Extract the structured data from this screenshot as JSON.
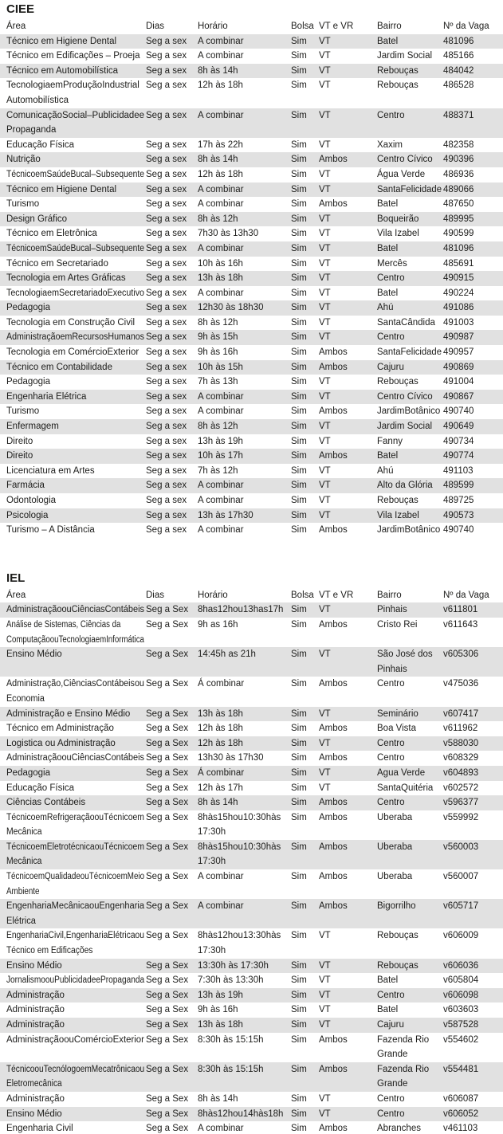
{
  "page": {
    "background": "#ffffff",
    "text_color": "#1d1d1b",
    "row_shade_color": "#e1e1e1"
  },
  "columns": [
    "Área",
    "Dias",
    "Horário",
    "Bolsa",
    "VT e VR",
    "Bairro",
    "Nº da Vaga"
  ],
  "sections": [
    {
      "title": "CIEE",
      "rows": [
        {
          "area": "Técnico em Higiene Dental",
          "dias": "Seg a sex",
          "horario": "A combinar",
          "bolsa": "Sim",
          "vt_vr": "VT",
          "bairro": "Batel",
          "vaga": "481096"
        },
        {
          "area": "Técnico em Edificações – Proeja",
          "dias": "Seg a sex",
          "horario": "A combinar",
          "bolsa": "Sim",
          "vt_vr": "VT",
          "bairro": "Jardim Social",
          "vaga": "485166"
        },
        {
          "area": "Técnico em Automobilística",
          "dias": "Seg a sex",
          "horario": "8h às 14h",
          "bolsa": "Sim",
          "vt_vr": "VT",
          "bairro": "Rebouças",
          "vaga": "484042"
        },
        {
          "area": "TecnologiaemProduçãoIndustrial\nAutomobilística",
          "dias": "Seg a sex",
          "horario": "12h às 18h",
          "bolsa": "Sim",
          "vt_vr": "VT",
          "bairro": "Rebouças",
          "vaga": "486528"
        },
        {
          "area": "ComunicaçãoSocial–Publicidadee\nPropaganda",
          "dias": "Seg a sex",
          "horario": "A combinar",
          "bolsa": "Sim",
          "vt_vr": "VT",
          "bairro": "Centro",
          "vaga": "488371"
        },
        {
          "area": "Educação Física",
          "dias": "Seg a sex",
          "horario": "17h às 22h",
          "bolsa": "Sim",
          "vt_vr": "VT",
          "bairro": "Xaxim",
          "vaga": "482358"
        },
        {
          "area": "Nutrição",
          "dias": "Seg a sex",
          "horario": "8h às 14h",
          "bolsa": "Sim",
          "vt_vr": "Ambos",
          "bairro": "Centro Cívico",
          "vaga": "490396"
        },
        {
          "area": "TécnicoemSaúdeBucal–Subsequente",
          "dias": "Seg a sex",
          "horario": "12h às 18h",
          "bolsa": "Sim",
          "vt_vr": "VT",
          "bairro": "Água Verde",
          "vaga": "486936"
        },
        {
          "area": "Técnico em Higiene Dental",
          "dias": "Seg a sex",
          "horario": "A combinar",
          "bolsa": "Sim",
          "vt_vr": "VT",
          "bairro": "SantaFelicidade",
          "vaga": "489066"
        },
        {
          "area": "Turismo",
          "dias": "Seg a sex",
          "horario": "A combinar",
          "bolsa": "Sim",
          "vt_vr": "Ambos",
          "bairro": "Batel",
          "vaga": "487650"
        },
        {
          "area": "Design Gráfico",
          "dias": "Seg a sex",
          "horario": "8h às 12h",
          "bolsa": "Sim",
          "vt_vr": "VT",
          "bairro": "Boqueirão",
          "vaga": "489995"
        },
        {
          "area": "Técnico em Eletrônica",
          "dias": "Seg a sex",
          "horario": "7h30 às 13h30",
          "bolsa": "Sim",
          "vt_vr": "VT",
          "bairro": "Vila Izabel",
          "vaga": "490599"
        },
        {
          "area": "TécnicoemSaúdeBucal–Subsequente",
          "dias": "Seg a sex",
          "horario": "A combinar",
          "bolsa": "Sim",
          "vt_vr": "VT",
          "bairro": "Batel",
          "vaga": "481096"
        },
        {
          "area": "Técnico em Secretariado",
          "dias": "Seg a sex",
          "horario": "10h às 16h",
          "bolsa": "Sim",
          "vt_vr": "VT",
          "bairro": "Mercês",
          "vaga": "485691"
        },
        {
          "area": "Tecnologia em Artes Gráficas",
          "dias": "Seg a sex",
          "horario": "13h às 18h",
          "bolsa": "Sim",
          "vt_vr": "VT",
          "bairro": "Centro",
          "vaga": "490915"
        },
        {
          "area": "TecnologiaemSecretariadoExecutivo",
          "dias": "Seg a sex",
          "horario": "A combinar",
          "bolsa": "Sim",
          "vt_vr": "VT",
          "bairro": "Batel",
          "vaga": "490224"
        },
        {
          "area": "Pedagogia",
          "dias": "Seg a sex",
          "horario": "12h30 às 18h30",
          "bolsa": "Sim",
          "vt_vr": "VT",
          "bairro": "Ahú",
          "vaga": "491086"
        },
        {
          "area": "Tecnologia em Construção Civil",
          "dias": "Seg a sex",
          "horario": "8h às 12h",
          "bolsa": "Sim",
          "vt_vr": "VT",
          "bairro": "SantaCândida",
          "vaga": "491003"
        },
        {
          "area": "AdministraçãoemRecursosHumanos",
          "dias": "Seg a sex",
          "horario": "9h às 15h",
          "bolsa": "Sim",
          "vt_vr": "VT",
          "bairro": "Centro",
          "vaga": "490987"
        },
        {
          "area": "Tecnologia em ComércioExterior",
          "dias": "Seg a sex",
          "horario": "9h às 16h",
          "bolsa": "Sim",
          "vt_vr": "Ambos",
          "bairro": "SantaFelicidade",
          "vaga": "490957"
        },
        {
          "area": "Técnico em Contabilidade",
          "dias": "Seg a sex",
          "horario": "10h às 15h",
          "bolsa": "Sim",
          "vt_vr": "Ambos",
          "bairro": "Cajuru",
          "vaga": "490869"
        },
        {
          "area": "Pedagogia",
          "dias": "Seg a sex",
          "horario": "7h às 13h",
          "bolsa": "Sim",
          "vt_vr": "VT",
          "bairro": "Rebouças",
          "vaga": "491004"
        },
        {
          "area": "Engenharia Elétrica",
          "dias": "Seg a sex",
          "horario": "A combinar",
          "bolsa": "Sim",
          "vt_vr": "VT",
          "bairro": "Centro Cívico",
          "vaga": "490867"
        },
        {
          "area": "Turismo",
          "dias": "Seg a sex",
          "horario": "A combinar",
          "bolsa": "Sim",
          "vt_vr": "Ambos",
          "bairro": "JardimBotânico",
          "vaga": "490740"
        },
        {
          "area": "Enfermagem",
          "dias": "Seg a sex",
          "horario": "8h às 12h",
          "bolsa": "Sim",
          "vt_vr": "VT",
          "bairro": "Jardim Social",
          "vaga": "490649"
        },
        {
          "area": "Direito",
          "dias": "Seg a sex",
          "horario": "13h às 19h",
          "bolsa": "Sim",
          "vt_vr": "VT",
          "bairro": "Fanny",
          "vaga": "490734"
        },
        {
          "area": "Direito",
          "dias": "Seg a sex",
          "horario": "10h às 17h",
          "bolsa": "Sim",
          "vt_vr": "Ambos",
          "bairro": "Batel",
          "vaga": "490774"
        },
        {
          "area": "Licenciatura em Artes",
          "dias": "Seg a sex",
          "horario": "7h às 12h",
          "bolsa": "Sim",
          "vt_vr": "VT",
          "bairro": "Ahú",
          "vaga": "491103"
        },
        {
          "area": "Farmácia",
          "dias": "Seg a sex",
          "horario": "A combinar",
          "bolsa": "Sim",
          "vt_vr": "VT",
          "bairro": "Alto da Glória",
          "vaga": "489599"
        },
        {
          "area": "Odontologia",
          "dias": "Seg a sex",
          "horario": "A combinar",
          "bolsa": "Sim",
          "vt_vr": "VT",
          "bairro": "Rebouças",
          "vaga": "489725"
        },
        {
          "area": "Psicologia",
          "dias": "Seg a sex",
          "horario": "13h às 17h30",
          "bolsa": "Sim",
          "vt_vr": "VT",
          "bairro": "Vila Izabel",
          "vaga": "490573"
        },
        {
          "area": "Turismo – A Distância",
          "dias": "Seg a sex",
          "horario": "A combinar",
          "bolsa": "Sim",
          "vt_vr": "Ambos",
          "bairro": "JardimBotânico",
          "vaga": "490740"
        }
      ]
    },
    {
      "title": "IEL",
      "rows": [
        {
          "area": "AdministraçãoouCiênciasContábeis",
          "dias": "Seg a Sex",
          "horario": "8has12hou13has17h",
          "bolsa": "Sim",
          "vt_vr": "VT",
          "bairro": "Pinhais",
          "vaga": "v611801"
        },
        {
          "area": "Análise de Sistemas, Ciências da\nComputaçãoouTecnologiaemInformática",
          "dias": "Seg a Sex",
          "horario": "9h as 16h",
          "bolsa": "Sim",
          "vt_vr": "Ambos",
          "bairro": "Cristo Rei",
          "vaga": "v611643"
        },
        {
          "area": "Ensino Médio",
          "dias": "Seg a Sex",
          "horario": "14:45h as 21h",
          "bolsa": "Sim",
          "vt_vr": "VT",
          "bairro": "São José dos\nPinhais",
          "vaga": "v605306"
        },
        {
          "area": "Administração,CiênciasContábeisou\nEconomia",
          "dias": "Seg a Sex",
          "horario": "Á combinar",
          "bolsa": "Sim",
          "vt_vr": "Ambos",
          "bairro": "Centro",
          "vaga": "v475036"
        },
        {
          "area": "Administração e Ensino Médio",
          "dias": "Seg a Sex",
          "horario": "13h às 18h",
          "bolsa": "Sim",
          "vt_vr": "VT",
          "bairro": "Seminário",
          "vaga": "v607417"
        },
        {
          "area": "Técnico em Administração",
          "dias": "Seg a Sex",
          "horario": "12h às 18h",
          "bolsa": "Sim",
          "vt_vr": "Ambos",
          "bairro": "Boa Vista",
          "vaga": "v611962"
        },
        {
          "area": "Logistica ou Administração",
          "dias": "Seg a Sex",
          "horario": "12h às 18h",
          "bolsa": "Sim",
          "vt_vr": "VT",
          "bairro": "Centro",
          "vaga": "v588030"
        },
        {
          "area": "AdministraçãoouCiênciasContábeis",
          "dias": "Seg a Sex",
          "horario": "13h30 às 17h30",
          "bolsa": "Sim",
          "vt_vr": "Ambos",
          "bairro": "Centro",
          "vaga": "v608329"
        },
        {
          "area": "Pedagogia",
          "dias": "Seg a Sex",
          "horario": "Á combinar",
          "bolsa": "Sim",
          "vt_vr": "VT",
          "bairro": "Agua Verde",
          "vaga": "v604893"
        },
        {
          "area": "Educação Física",
          "dias": "Seg a Sex",
          "horario": "12h às 17h",
          "bolsa": "Sim",
          "vt_vr": "VT",
          "bairro": "SantaQuitéria",
          "vaga": "v602572"
        },
        {
          "area": "Ciências Contábeis",
          "dias": "Seg a Sex",
          "horario": "8h às 14h",
          "bolsa": "Sim",
          "vt_vr": "Ambos",
          "bairro": "Centro",
          "vaga": "v596377"
        },
        {
          "area": "TécnicoemRefrigeraçãoouTécnicoem\nMecânica",
          "dias": "Seg a Sex",
          "horario": "8hàs15hou10:30hàs\n17:30h",
          "bolsa": "Sim",
          "vt_vr": "Ambos",
          "bairro": "Uberaba",
          "vaga": "v559992"
        },
        {
          "area": "TécnicoemEletrotécnicaouTécnicoem\nMecânica",
          "dias": "Seg a Sex",
          "horario": "8hàs15hou10:30hàs\n17:30h",
          "bolsa": "Sim",
          "vt_vr": "Ambos",
          "bairro": "Uberaba",
          "vaga": "v560003"
        },
        {
          "area": "TécnicoemQualidadeouTécnicoemMeio\nAmbiente",
          "dias": "Seg a Sex",
          "horario": "A combinar",
          "bolsa": "Sim",
          "vt_vr": "Ambos",
          "bairro": "Uberaba",
          "vaga": "v560007"
        },
        {
          "area": "EngenhariaMecânicaouEngenharia\nElétrica",
          "dias": "Seg a Sex",
          "horario": "A combinar",
          "bolsa": "Sim",
          "vt_vr": "Ambos",
          "bairro": "Bigorrilho",
          "vaga": "v605717"
        },
        {
          "area": "EngenhariaCivil,EngenhariaElétricaou\nTécnico em Edificações",
          "dias": "Seg a Sex",
          "horario": "8hàs12hou13:30hàs\n17:30h",
          "bolsa": "Sim",
          "vt_vr": "VT",
          "bairro": "Rebouças",
          "vaga": "v606009"
        },
        {
          "area": "Ensino Médio",
          "dias": "Seg a Sex",
          "horario": "13:30h às 17:30h",
          "bolsa": "Sim",
          "vt_vr": "VT",
          "bairro": "Rebouças",
          "vaga": "v606036"
        },
        {
          "area": "JornalismoouPublicidadeePropaganda",
          "dias": "Seg a Sex",
          "horario": "7:30h às 13:30h",
          "bolsa": "Sim",
          "vt_vr": "VT",
          "bairro": "Batel",
          "vaga": "v605804"
        },
        {
          "area": "Administração",
          "dias": "Seg a Sex",
          "horario": "13h às 19h",
          "bolsa": "Sim",
          "vt_vr": "VT",
          "bairro": "Centro",
          "vaga": "v606098"
        },
        {
          "area": "Administração",
          "dias": "Seg a Sex",
          "horario": "9h às 16h",
          "bolsa": "Sim",
          "vt_vr": "VT",
          "bairro": "Batel",
          "vaga": "v603603"
        },
        {
          "area": "Administração",
          "dias": "Seg a Sex",
          "horario": "13h às 18h",
          "bolsa": "Sim",
          "vt_vr": "VT",
          "bairro": "Cajuru",
          "vaga": "v587528"
        },
        {
          "area": "AdministraçãoouComércioExterior",
          "dias": "Seg a Sex",
          "horario": "8:30h às 15:15h",
          "bolsa": "Sim",
          "vt_vr": "Ambos",
          "bairro": "Fazenda Rio\nGrande",
          "vaga": "v554602"
        },
        {
          "area": "TécnicoouTecnólogoemMecatrônicaou\nEletromecânica",
          "dias": "Seg a Sex",
          "horario": "8:30h às 15:15h",
          "bolsa": "Sim",
          "vt_vr": "Ambos",
          "bairro": "Fazenda Rio\nGrande",
          "vaga": "v554481"
        },
        {
          "area": "Administração",
          "dias": "Seg a Sex",
          "horario": "8h às 14h",
          "bolsa": "Sim",
          "vt_vr": "VT",
          "bairro": "Centro",
          "vaga": "v606087"
        },
        {
          "area": "Ensino Médio",
          "dias": "Seg a Sex",
          "horario": "8hàs12hou14hàs18h",
          "bolsa": "Sim",
          "vt_vr": "VT",
          "bairro": "Centro",
          "vaga": "v606052"
        },
        {
          "area": "Engenharia Civil",
          "dias": "Seg a Sex",
          "horario": "A combinar",
          "bolsa": "Sim",
          "vt_vr": "Ambos",
          "bairro": "Abranches",
          "vaga": "v461103"
        }
      ]
    }
  ]
}
